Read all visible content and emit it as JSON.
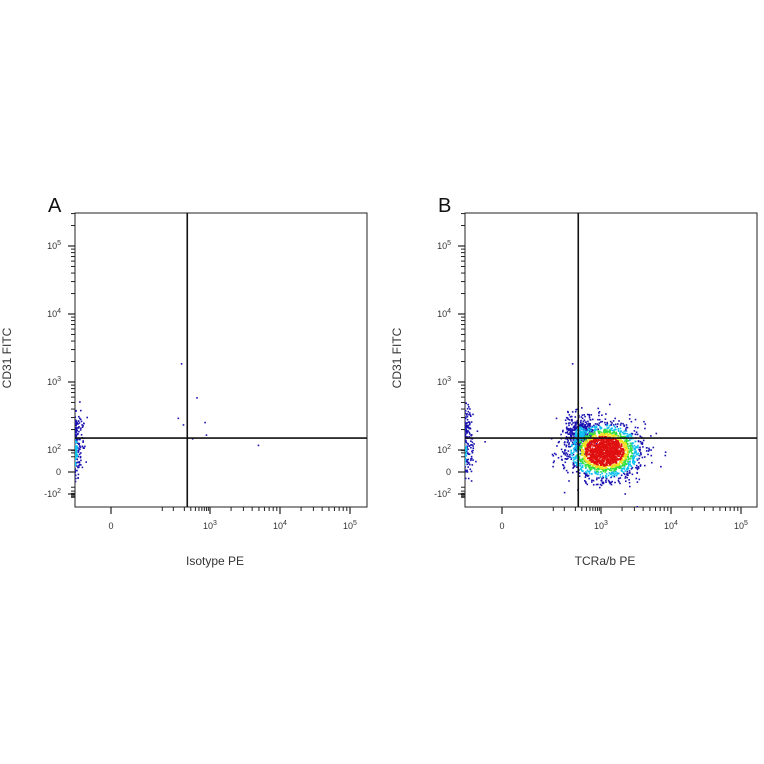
{
  "chart_data": [
    {
      "type": "scatter",
      "panel_label": "A",
      "xlabel": "Isotype PE",
      "ylabel": "CD31 FITC",
      "scale": "biexponential",
      "xlim": [
        -600,
        150000
      ],
      "ylim": [
        -200,
        200000
      ],
      "x_tick_labels": [
        {
          "base": "0",
          "exp": "",
          "value": 0
        },
        {
          "base": "10",
          "exp": "3",
          "value": 1000
        },
        {
          "base": "10",
          "exp": "4",
          "value": 10000
        },
        {
          "base": "10",
          "exp": "5",
          "value": 100000
        }
      ],
      "y_tick_labels": [
        {
          "base": "-10",
          "exp": "2",
          "value": -100
        },
        {
          "base": "0",
          "exp": "",
          "value": 0
        },
        {
          "base": "10",
          "exp": "2",
          "value": 100
        },
        {
          "base": "10",
          "exp": "3",
          "value": 1000
        },
        {
          "base": "10",
          "exp": "4",
          "value": 10000
        },
        {
          "base": "10",
          "exp": "5",
          "value": 100000
        }
      ],
      "quadrant_gate": {
        "x": 240,
        "y": 150
      },
      "populations": [
        {
          "x": -40,
          "y": 85,
          "count": 1900
        },
        {
          "x": -40,
          "y": 220,
          "count": 650
        }
      ],
      "outlier_points": [
        [
          130,
          300
        ],
        [
          180,
          240
        ],
        [
          420,
          600
        ],
        [
          700,
          260
        ],
        [
          4800,
          120
        ],
        [
          320,
          150
        ],
        [
          760,
          170
        ],
        [
          160,
          1900
        ]
      ],
      "grid": false,
      "legend": "none"
    },
    {
      "type": "scatter",
      "panel_label": "B",
      "xlabel": "TCRa/b PE",
      "ylabel": "CD31 FITC",
      "scale": "biexponential",
      "xlim": [
        -600,
        150000
      ],
      "ylim": [
        -200,
        200000
      ],
      "x_tick_labels": [
        {
          "base": "0",
          "exp": "",
          "value": 0
        },
        {
          "base": "10",
          "exp": "3",
          "value": 1000
        },
        {
          "base": "10",
          "exp": "4",
          "value": 10000
        },
        {
          "base": "10",
          "exp": "5",
          "value": 100000
        }
      ],
      "y_tick_labels": [
        {
          "base": "-10",
          "exp": "2",
          "value": -100
        },
        {
          "base": "0",
          "exp": "",
          "value": 0
        },
        {
          "base": "10",
          "exp": "2",
          "value": 100
        },
        {
          "base": "10",
          "exp": "3",
          "value": 1000
        },
        {
          "base": "10",
          "exp": "4",
          "value": 10000
        },
        {
          "base": "10",
          "exp": "5",
          "value": 100000
        }
      ],
      "quadrant_gate": {
        "x": 240,
        "y": 150
      },
      "populations": [
        {
          "x": -40,
          "y": 60,
          "count": 1200
        },
        {
          "x": -40,
          "y": 240,
          "count": 800
        },
        {
          "x": 1100,
          "y": 95,
          "count": 2200
        },
        {
          "x": 250,
          "y": 180,
          "count": 350
        }
      ],
      "outlier_points": [
        [
          160,
          1900
        ],
        [
          1300,
          480
        ],
        [
          800,
          420
        ],
        [
          300,
          300
        ]
      ],
      "grid": false,
      "legend": "none"
    }
  ],
  "colors": {
    "density_low": "#1a12b0",
    "density_mid_low": "#10c0f0",
    "density_mid": "#30e040",
    "density_mid_high": "#f0e020",
    "density_high": "#e01010",
    "axis": "#222222",
    "gate_line": "#111111"
  }
}
